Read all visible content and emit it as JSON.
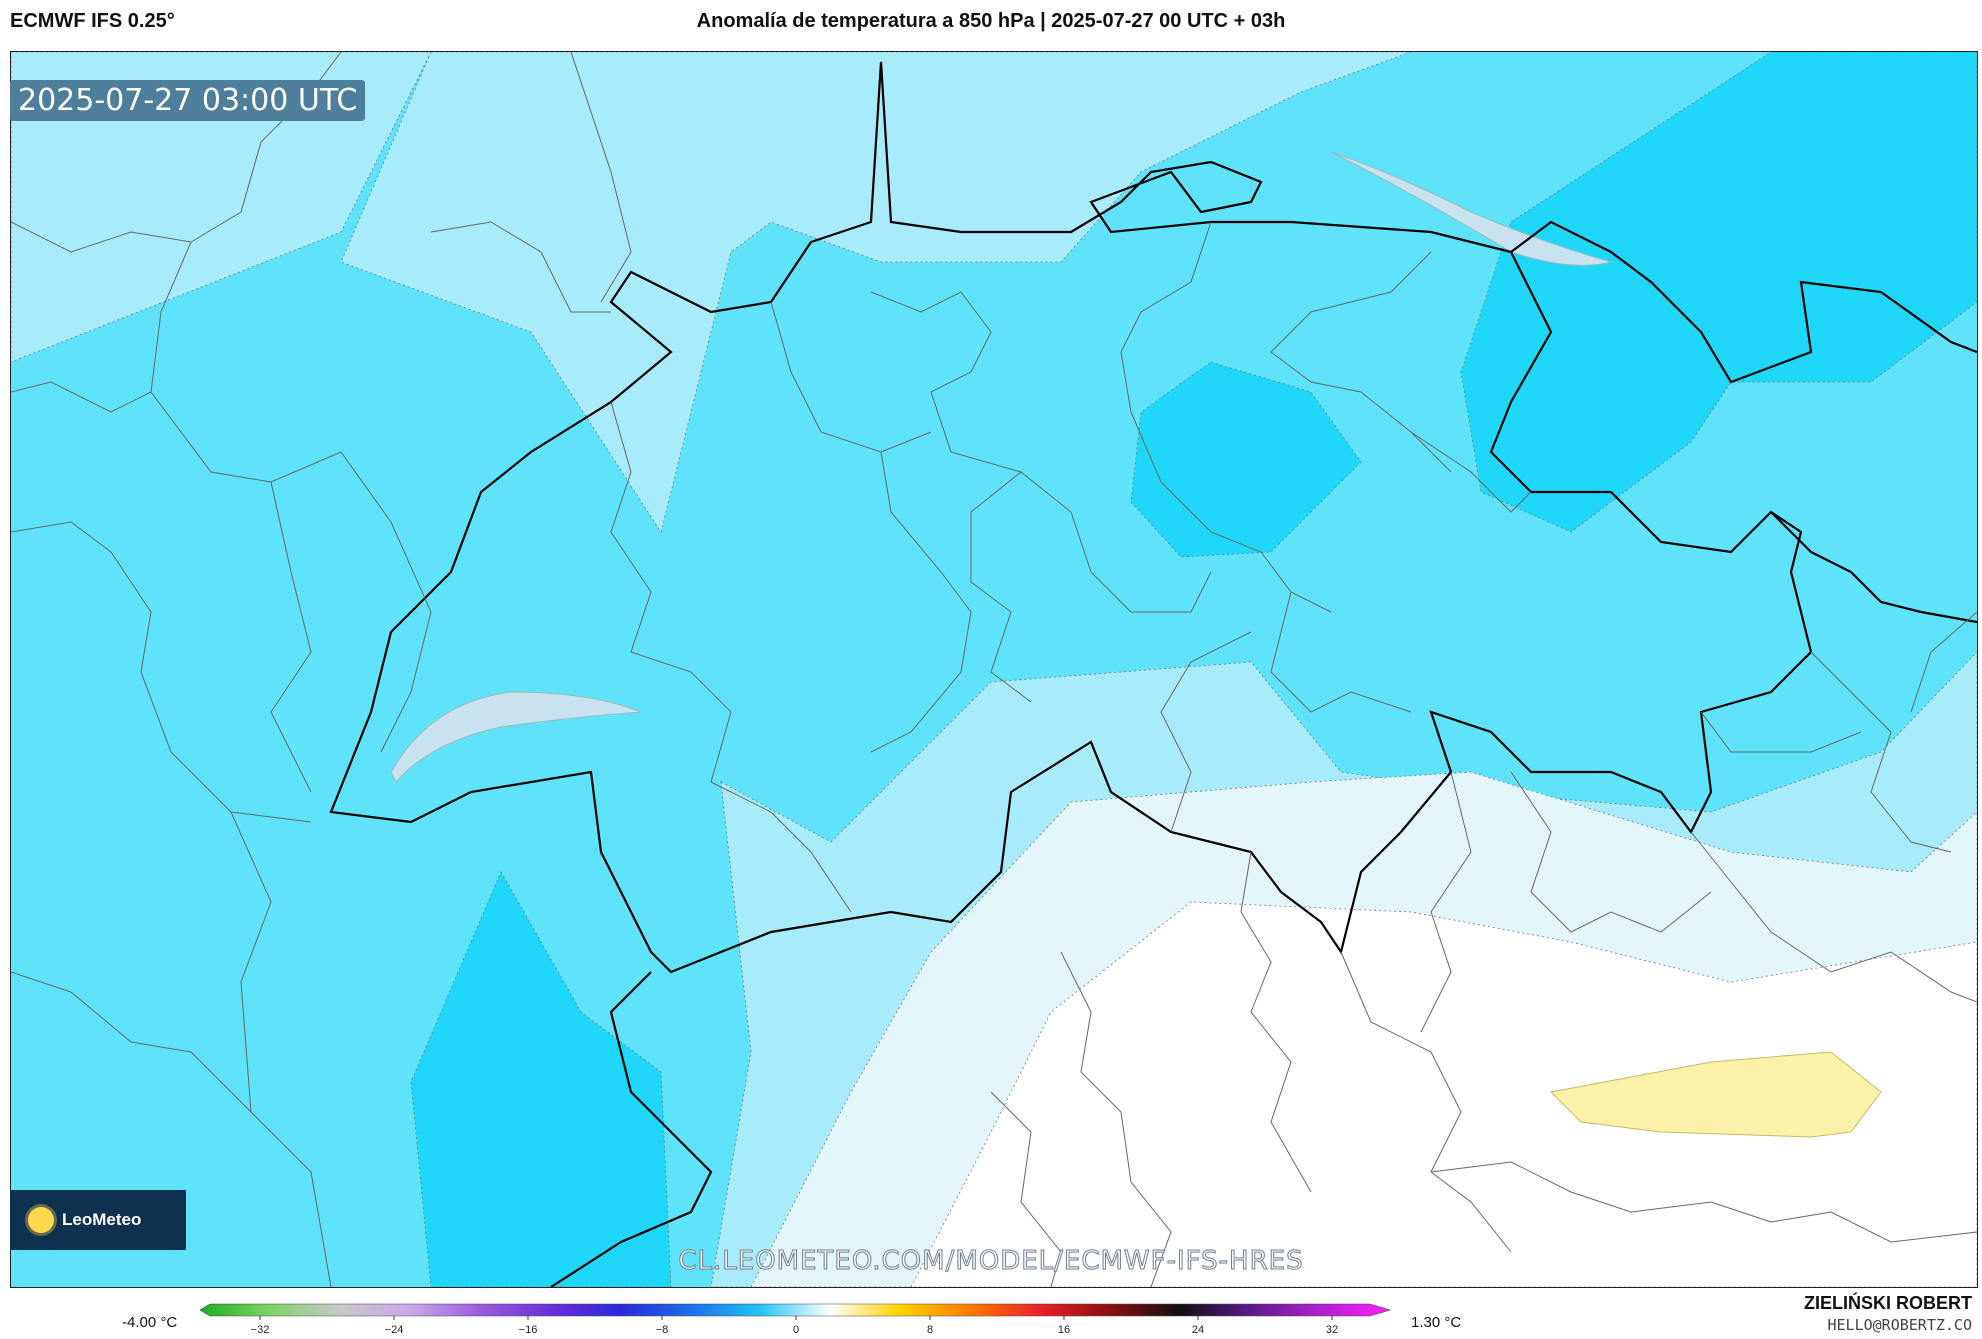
{
  "header": {
    "model": "ECMWF IFS 0.25°",
    "title": "Anomalía de temperatura a 850 hPa | 2025-07-27 00 UTC + 03h"
  },
  "map": {
    "timestamp": "2025-07-27 03:00 UTC",
    "source_url": "CL.LEOMETEO.COM/MODEL/ECMWF-IFS-HRES",
    "logo_text": "LeoMeteo",
    "fill_colors": {
      "level_neg3": "#1fd8f9",
      "level_neg2": "#5fe3fb",
      "level_neg1": "#a8ecfb",
      "level_0": "#e3f6fb",
      "neutral": "#ffffff",
      "positive": "#fbf1a8"
    }
  },
  "colorbar": {
    "min_label": "-4.00 °C",
    "max_label": "1.30 °C",
    "ticks": [
      "−32",
      "−24",
      "−16",
      "−8",
      "0",
      "8",
      "16",
      "24",
      "32"
    ],
    "gradient_stops": [
      "#1cb01c",
      "#7fd36a",
      "#c8c8c8",
      "#c9a8e8",
      "#9b5ce0",
      "#6a2fd8",
      "#2a2ad8",
      "#1a6ee8",
      "#22c4f5",
      "#ffffff",
      "#ffd200",
      "#ff7a00",
      "#e8202a",
      "#8a1010",
      "#111111",
      "#5a1a8a",
      "#b020d0",
      "#ff20ff"
    ]
  },
  "credits": {
    "author": "ZIELIŃSKI ROBERT",
    "email": "HELLO@ROBERTZ.CO"
  }
}
